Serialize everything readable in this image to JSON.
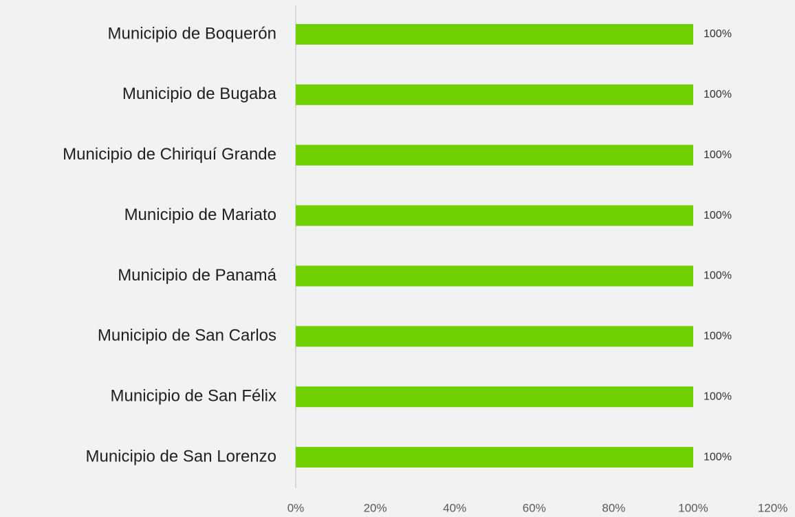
{
  "chart_data": {
    "type": "hbar",
    "categories": [
      "Municipio de Boquerón",
      "Municipio de Bugaba",
      "Municipio de Chiriquí Grande",
      "Municipio de Mariato",
      "Municipio de Panamá",
      "Municipio de San Carlos",
      "Municipio de San Félix",
      "Municipio de San Lorenzo"
    ],
    "values": [
      100,
      100,
      100,
      100,
      100,
      100,
      100,
      100
    ],
    "value_labels": [
      "100%",
      "100%",
      "100%",
      "100%",
      "100%",
      "100%",
      "100%",
      "100%"
    ],
    "color": "#6fcf00",
    "xlim": [
      0,
      120
    ],
    "xticks": [
      {
        "value": 0,
        "label": "0%"
      },
      {
        "value": 20,
        "label": "20%"
      },
      {
        "value": 40,
        "label": "40%"
      },
      {
        "value": 60,
        "label": "60%"
      },
      {
        "value": 80,
        "label": "80%"
      },
      {
        "value": 100,
        "label": "100%"
      },
      {
        "value": 120,
        "label": "120%"
      }
    ],
    "grid": false
  }
}
